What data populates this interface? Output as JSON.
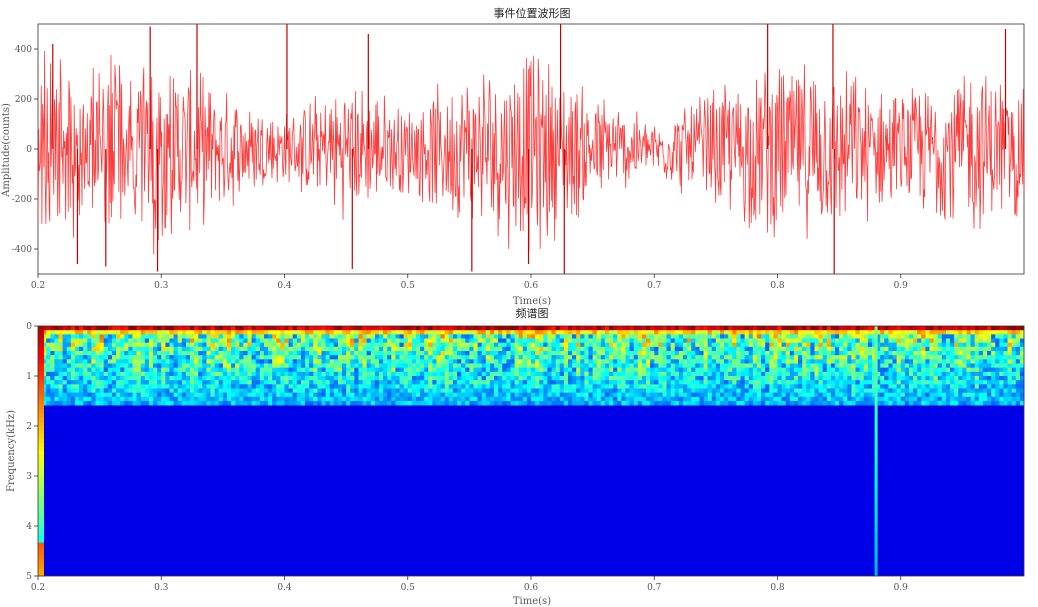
{
  "chart_data": [
    {
      "type": "line",
      "title": "事件位置波形图",
      "xlabel": "Time(s)",
      "ylabel": "Amplitude(counts)",
      "xlim": [
        0.2,
        1.0
      ],
      "ylim": [
        -500,
        500
      ],
      "xticks": [
        "0.2",
        "0.3",
        "0.4",
        "0.5",
        "0.6",
        "0.7",
        "0.8",
        "0.9"
      ],
      "yticks": [
        "400",
        "200",
        "0",
        "-200",
        "-400"
      ],
      "series": [
        {
          "color": "#ff1a1a",
          "x_start": 0.2,
          "x_end": 1.0,
          "envelope": {
            "x": [
              0.2,
              0.25,
              0.3,
              0.35,
              0.4,
              0.45,
              0.5,
              0.55,
              0.6,
              0.65,
              0.7,
              0.75,
              0.8,
              0.85,
              0.9,
              0.95,
              1.0
            ],
            "amplitude": [
              420,
              380,
              440,
              260,
              160,
              300,
              200,
              340,
              460,
              260,
              120,
              280,
              400,
              360,
              240,
              380,
              300
            ]
          },
          "spikes": [
            {
              "x": 0.212,
              "y": 420
            },
            {
              "x": 0.232,
              "y": -460
            },
            {
              "x": 0.255,
              "y": -470
            },
            {
              "x": 0.291,
              "y": 490
            },
            {
              "x": 0.297,
              "y": -490
            },
            {
              "x": 0.329,
              "y": 500
            },
            {
              "x": 0.402,
              "y": 500
            },
            {
              "x": 0.455,
              "y": -480
            },
            {
              "x": 0.468,
              "y": 460
            },
            {
              "x": 0.552,
              "y": -490
            },
            {
              "x": 0.598,
              "y": -460
            },
            {
              "x": 0.624,
              "y": 500
            },
            {
              "x": 0.627,
              "y": -500
            },
            {
              "x": 0.792,
              "y": 500
            },
            {
              "x": 0.845,
              "y": 500
            },
            {
              "x": 0.846,
              "y": -500
            },
            {
              "x": 0.985,
              "y": 480
            }
          ]
        }
      ]
    },
    {
      "type": "heatmap",
      "title": "频谱图",
      "xlabel": "Time(s)",
      "ylabel": "Frequency(kHz)",
      "xlim": [
        0.2,
        1.0
      ],
      "ylim": [
        0,
        5
      ],
      "xticks": [
        "0.2",
        "0.3",
        "0.4",
        "0.5",
        "0.6",
        "0.7",
        "0.8",
        "0.9"
      ],
      "yticks": [
        "0",
        "1",
        "2",
        "3",
        "4",
        "5"
      ],
      "colormap": "jet",
      "high_energy_band_khz": [
        0,
        0.1
      ],
      "mid_energy_band_khz": [
        0.1,
        1.6
      ],
      "broadband_event_times": [
        0.2,
        0.88
      ]
    }
  ]
}
